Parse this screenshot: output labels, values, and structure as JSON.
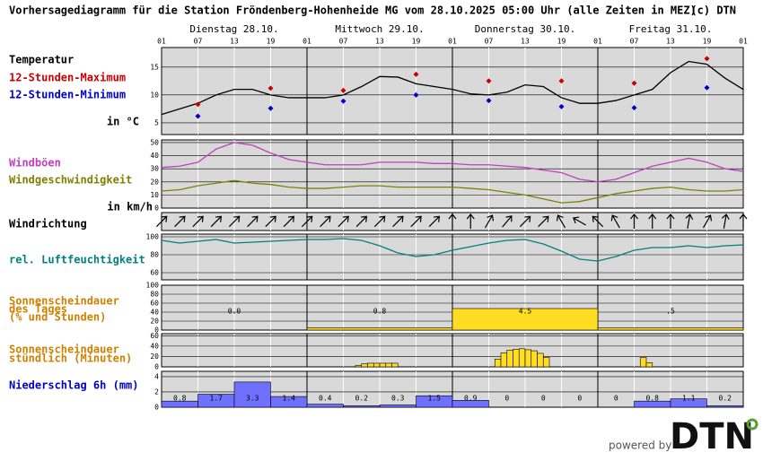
{
  "title": "Vorhersagediagramm für die Station Fröndenberg-Hohenheide MG vom 28.10.2025 05:00 Uhr (alle Zeiten in MEZ)",
  "copyright": "(c) DTN",
  "days": [
    "Dienstag 28.10.",
    "Mittwoch 29.10.",
    "Donnerstag 30.10.",
    "Freitag 31.10."
  ],
  "hours": [
    "01",
    "07",
    "13",
    "19",
    "01",
    "07",
    "13",
    "19",
    "01",
    "07",
    "13",
    "19",
    "01",
    "07",
    "13",
    "19",
    "01"
  ],
  "temperature": {
    "label": "Temperatur",
    "unit": "in °C",
    "color": "#000000",
    "ylim": [
      2.9,
      18.5
    ],
    "yticks": [
      5,
      10,
      15
    ],
    "values": [
      6.5,
      7.5,
      8.5,
      10,
      11,
      11,
      10,
      9.5,
      9.5,
      9.5,
      10,
      11.5,
      13.3,
      13.2,
      12,
      11.5,
      11,
      10.2,
      10,
      10.5,
      11.8,
      11.5,
      9.5,
      8.5,
      8.5,
      9,
      10,
      11,
      14,
      16,
      15.5,
      13,
      11
    ],
    "max": {
      "name": "12-Stunden-Maximum",
      "color": "#cc0000",
      "values": [
        8.3,
        11.2,
        10.8,
        13.7,
        12.5,
        12.5,
        12.1,
        16.5
      ]
    },
    "min": {
      "name": "12-Stunden-Minimum",
      "color": "#0000cc",
      "values": [
        6.2,
        7.6,
        8.9,
        10,
        9,
        7.9,
        7.7,
        11.3
      ]
    }
  },
  "wind": {
    "unit": "in km/h",
    "ylim": [
      0,
      52
    ],
    "yticks": [
      0,
      10,
      20,
      30,
      40,
      50
    ],
    "series": [
      {
        "name": "Windböen",
        "color": "#c040c0",
        "values": [
          31,
          32,
          35,
          45,
          50,
          48,
          42,
          37,
          35,
          33,
          33,
          33,
          35,
          35,
          35,
          34,
          34,
          33,
          33,
          32,
          31,
          29,
          27,
          22,
          20,
          22,
          27,
          32,
          35,
          38,
          35,
          30,
          28
        ]
      },
      {
        "name": "Windgeschwindigkeit",
        "color": "#808000",
        "values": [
          13,
          14,
          17,
          19,
          21,
          19,
          18,
          16,
          15,
          15,
          16,
          17,
          17,
          16,
          16,
          16,
          16,
          15,
          14,
          12,
          10,
          7,
          4,
          5,
          8,
          11,
          13,
          15,
          16,
          14,
          13,
          13,
          14
        ]
      }
    ]
  },
  "wind_direction": {
    "label": "Windrichtung",
    "values": [
      45,
      45,
      45,
      45,
      45,
      45,
      45,
      45,
      45,
      45,
      45,
      45,
      45,
      45,
      45,
      45,
      0,
      0,
      30,
      40,
      45,
      45,
      330,
      300,
      315,
      330,
      0,
      0,
      0,
      10,
      30,
      10,
      0
    ]
  },
  "humidity": {
    "name": "rel. Luftfeuchtigkeit",
    "color": "#008080",
    "ylim": [
      52,
      103
    ],
    "yticks": [
      60,
      80,
      100
    ],
    "values": [
      96,
      93,
      95,
      97,
      93,
      94,
      95,
      96,
      97,
      97,
      98,
      96,
      90,
      82,
      78,
      80,
      85,
      89,
      93,
      96,
      97,
      92,
      84,
      75,
      73,
      78,
      85,
      88,
      88,
      90,
      88,
      90,
      91
    ]
  },
  "sunshine_daily": {
    "label": [
      "Sonnenscheindauer",
      "des Tages",
      "(% und Stunden)"
    ],
    "color": "#ffdd22",
    "ylim": [
      0,
      100
    ],
    "yticks": [
      0,
      20,
      40,
      60,
      80,
      100
    ],
    "values": [
      0,
      5,
      48,
      5
    ],
    "hours_labels": [
      "0.0",
      "0.8",
      "4.5",
      ".5"
    ]
  },
  "sunshine_hourly": {
    "label": [
      "Sonnenscheindauer",
      "stündlich (Minuten)"
    ],
    "color": "#ffdd22",
    "ylim": [
      0,
      64
    ],
    "yticks": [
      0,
      20,
      40,
      60
    ],
    "values": [
      0,
      0,
      0,
      0,
      0,
      0,
      0,
      0,
      0,
      0,
      0,
      0,
      0,
      0,
      0,
      0,
      0,
      0,
      0,
      0,
      0,
      0,
      0,
      0,
      0,
      0,
      0,
      0,
      0,
      0,
      0,
      0,
      3,
      6,
      7,
      7,
      7,
      7,
      7,
      0,
      0,
      0,
      0,
      0,
      0,
      0,
      0,
      0,
      0,
      0,
      0,
      0,
      0,
      0,
      0,
      15,
      27,
      32,
      34,
      35,
      33,
      31,
      26,
      18,
      0,
      0,
      0,
      0,
      0,
      0,
      0,
      0,
      0,
      0,
      0,
      0,
      0,
      0,
      0,
      18,
      8,
      0,
      0,
      0,
      0,
      0,
      0,
      0,
      0,
      0,
      0,
      0,
      0,
      0,
      0,
      0
    ]
  },
  "precipitation": {
    "label": "Niederschlag 6h (mm)",
    "color": "#7070ff",
    "ylim": [
      0,
      4.7
    ],
    "yticks": [
      0,
      2,
      4
    ],
    "values": [
      0.8,
      1.7,
      3.3,
      1.4,
      0.4,
      0.2,
      0.3,
      1.5,
      0.9,
      0,
      0,
      0,
      0,
      0.8,
      1.1,
      0.2
    ]
  },
  "footer": {
    "powered_by": "powered by",
    "logo": "DTN"
  }
}
